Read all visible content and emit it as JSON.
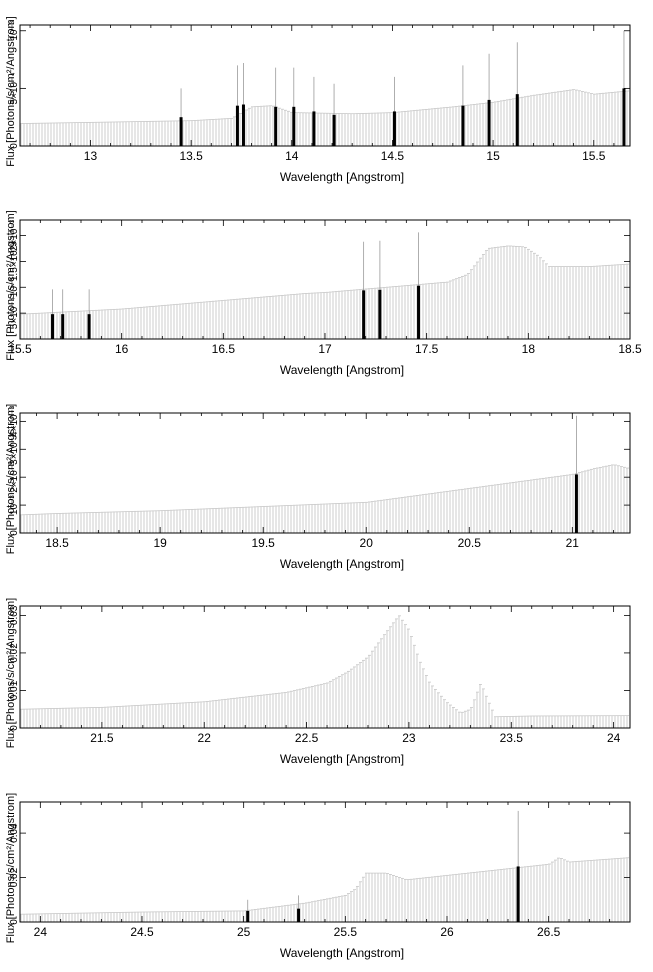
{
  "chart_data": [
    {
      "type": "bar",
      "xlabel": "Wavelength [Angstrom]",
      "ylabel": "Flux [Photons/s/cm²/Angstrom]",
      "xlim": [
        12.65,
        15.68
      ],
      "ylim": [
        0,
        0.00105
      ],
      "xticks": [
        13,
        13.5,
        14,
        14.5,
        15,
        15.5
      ],
      "yticks": [
        0,
        0.0005,
        0.001
      ],
      "ytick_labels": [
        "0",
        "5×10⁻⁴",
        "10⁻³"
      ],
      "continuum": [
        [
          12.65,
          0.000195
        ],
        [
          13.0,
          0.000205
        ],
        [
          13.5,
          0.00022
        ],
        [
          13.7,
          0.00024
        ],
        [
          13.8,
          0.00034
        ],
        [
          13.9,
          0.00035
        ],
        [
          14.0,
          0.00029
        ],
        [
          14.3,
          0.00028
        ],
        [
          14.5,
          0.00029
        ],
        [
          14.8,
          0.00034
        ],
        [
          15.0,
          0.00038
        ],
        [
          15.2,
          0.00044
        ],
        [
          15.4,
          0.00049
        ],
        [
          15.5,
          0.00045
        ],
        [
          15.68,
          0.00048
        ]
      ],
      "lines": [
        {
          "x": 13.45,
          "y": 0.00025,
          "err": 0.0005
        },
        {
          "x": 13.73,
          "y": 0.00035,
          "err": 0.0007
        },
        {
          "x": 13.76,
          "y": 0.00036,
          "err": 0.00072
        },
        {
          "x": 13.92,
          "y": 0.00034,
          "err": 0.00068
        },
        {
          "x": 14.01,
          "y": 0.00034,
          "err": 0.00068
        },
        {
          "x": 14.11,
          "y": 0.0003,
          "err": 0.0006
        },
        {
          "x": 14.21,
          "y": 0.00027,
          "err": 0.00054
        },
        {
          "x": 14.51,
          "y": 0.0003,
          "err": 0.0006
        },
        {
          "x": 14.85,
          "y": 0.00035,
          "err": 0.0007
        },
        {
          "x": 14.98,
          "y": 0.0004,
          "err": 0.0008
        },
        {
          "x": 15.12,
          "y": 0.00045,
          "err": 0.0009
        },
        {
          "x": 15.65,
          "y": 0.0005,
          "err": 0.001
        }
      ]
    },
    {
      "type": "bar",
      "xlabel": "Wavelength [Angstrom]",
      "ylabel": "Flux [Photons/s/cm²/Angstrom]",
      "xlim": [
        15.5,
        18.5
      ],
      "ylim": [
        0,
        0.0023
      ],
      "xticks": [
        15.5,
        16,
        16.5,
        17,
        17.5,
        18,
        18.5
      ],
      "yticks": [
        0.0005,
        0.001,
        0.0015,
        0.002
      ],
      "ytick_labels": [
        "5×10⁻⁴",
        "10⁻³",
        "1.5×10⁻³",
        "2×10⁻³"
      ],
      "continuum": [
        [
          15.5,
          0.00048
        ],
        [
          16.0,
          0.00058
        ],
        [
          16.3,
          0.00068
        ],
        [
          16.6,
          0.00078
        ],
        [
          16.9,
          0.00088
        ],
        [
          17.0,
          0.0009
        ],
        [
          17.3,
          0.001
        ],
        [
          17.6,
          0.0011
        ],
        [
          17.7,
          0.00125
        ],
        [
          17.75,
          0.0015
        ],
        [
          17.8,
          0.00175
        ],
        [
          17.9,
          0.0018
        ],
        [
          17.98,
          0.00178
        ],
        [
          18.05,
          0.0016
        ],
        [
          18.1,
          0.0014
        ],
        [
          18.3,
          0.0014
        ],
        [
          18.5,
          0.00145
        ]
      ],
      "lines": [
        {
          "x": 15.66,
          "y": 0.00048,
          "err": 0.00096
        },
        {
          "x": 15.71,
          "y": 0.00048,
          "err": 0.00096
        },
        {
          "x": 15.84,
          "y": 0.00048,
          "err": 0.00096
        },
        {
          "x": 17.19,
          "y": 0.00094,
          "err": 0.00188
        },
        {
          "x": 17.27,
          "y": 0.00095,
          "err": 0.0019
        },
        {
          "x": 17.46,
          "y": 0.00103,
          "err": 0.00206
        }
      ]
    },
    {
      "type": "bar",
      "xlabel": "Wavelength [Angstrom]",
      "ylabel": "Flux [Photons/s/cm²/Angstrom]",
      "xlim": [
        18.32,
        21.28
      ],
      "ylim": [
        0,
        0.0043
      ],
      "xticks": [
        18.5,
        19,
        19.5,
        20,
        20.5,
        21
      ],
      "yticks": [
        0,
        0.001,
        0.002,
        0.003,
        0.004
      ],
      "ytick_labels": [
        "0",
        "10⁻³",
        "2×10⁻³",
        "3×10⁻³",
        "4×10⁻³"
      ],
      "continuum": [
        [
          18.32,
          0.00065
        ],
        [
          18.5,
          0.0007
        ],
        [
          19.0,
          0.0008
        ],
        [
          19.5,
          0.00095
        ],
        [
          20.0,
          0.0011
        ],
        [
          20.5,
          0.0016
        ],
        [
          21.0,
          0.0021
        ],
        [
          21.1,
          0.0023
        ],
        [
          21.2,
          0.00245
        ],
        [
          21.28,
          0.0023
        ]
      ],
      "lines": [
        {
          "x": 21.02,
          "y": 0.0021,
          "err": 0.0042
        }
      ]
    },
    {
      "type": "bar",
      "xlabel": "Wavelength [Angstrom]",
      "ylabel": "Flux [Photons/s/cm²/Angstrom]",
      "xlim": [
        21.1,
        24.08
      ],
      "ylim": [
        0,
        0.0325
      ],
      "xticks": [
        21.5,
        22,
        22.5,
        23,
        23.5,
        24
      ],
      "yticks": [
        0,
        0.01,
        0.02,
        0.03
      ],
      "ytick_labels": [
        "0",
        "0.01",
        "0.02",
        "0.03"
      ],
      "continuum": [
        [
          21.1,
          0.005
        ],
        [
          21.5,
          0.0055
        ],
        [
          22.0,
          0.007
        ],
        [
          22.4,
          0.0095
        ],
        [
          22.6,
          0.012
        ],
        [
          22.7,
          0.015
        ],
        [
          22.8,
          0.019
        ],
        [
          22.88,
          0.025
        ],
        [
          22.95,
          0.03
        ],
        [
          23.0,
          0.026
        ],
        [
          23.05,
          0.018
        ],
        [
          23.1,
          0.012
        ],
        [
          23.18,
          0.007
        ],
        [
          23.25,
          0.004
        ],
        [
          23.3,
          0.005
        ],
        [
          23.35,
          0.012
        ],
        [
          23.38,
          0.008
        ],
        [
          23.42,
          0.003
        ],
        [
          23.6,
          0.0032
        ],
        [
          24.08,
          0.0033
        ]
      ],
      "lines": []
    },
    {
      "type": "bar",
      "xlabel": "Wavelength [Angstrom]",
      "ylabel": "Flux [Photons/s/cm²/Angstrom]",
      "xlim": [
        23.9,
        26.9
      ],
      "ylim": [
        0,
        0.054
      ],
      "xticks": [
        24,
        24.5,
        25,
        25.5,
        26,
        26.5
      ],
      "yticks": [
        0,
        0.02,
        0.04
      ],
      "ytick_labels": [
        "0",
        "0.02",
        "0.04"
      ],
      "continuum": [
        [
          23.9,
          0.0035
        ],
        [
          24.5,
          0.0045
        ],
        [
          25.0,
          0.005
        ],
        [
          25.3,
          0.0085
        ],
        [
          25.5,
          0.012
        ],
        [
          25.55,
          0.015
        ],
        [
          25.6,
          0.022
        ],
        [
          25.7,
          0.022
        ],
        [
          25.8,
          0.019
        ],
        [
          26.0,
          0.021
        ],
        [
          26.2,
          0.023
        ],
        [
          26.5,
          0.026
        ],
        [
          26.55,
          0.029
        ],
        [
          26.6,
          0.027
        ],
        [
          26.9,
          0.029
        ]
      ],
      "lines": [
        {
          "x": 25.02,
          "y": 0.005,
          "err": 0.01
        },
        {
          "x": 25.27,
          "y": 0.006,
          "err": 0.012
        },
        {
          "x": 26.35,
          "y": 0.025,
          "err": 0.05
        }
      ]
    }
  ]
}
